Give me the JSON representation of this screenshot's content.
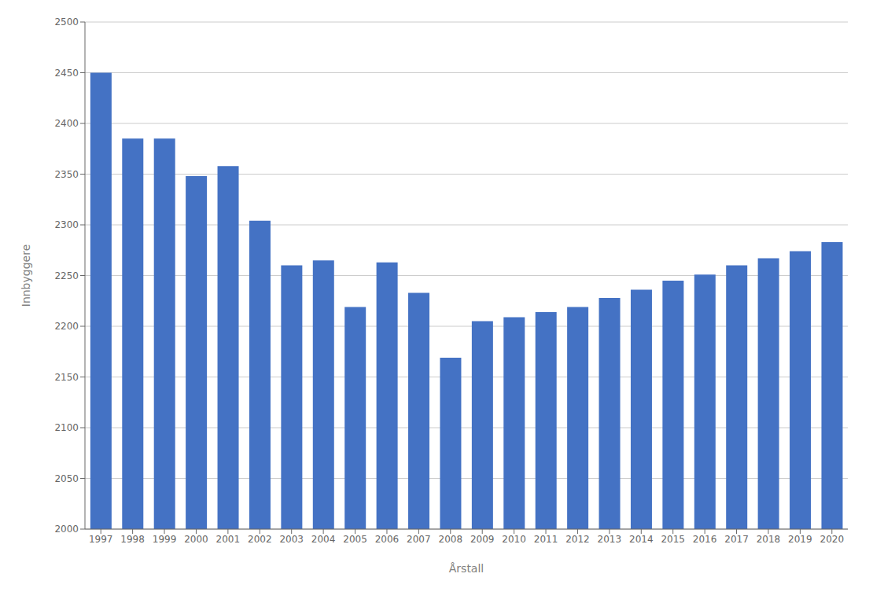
{
  "chart_data": {
    "type": "bar",
    "xlabel": "Årstall",
    "ylabel": "Innbyggere",
    "categories": [
      "1997",
      "1998",
      "1999",
      "2000",
      "2001",
      "2002",
      "2003",
      "2004",
      "2005",
      "2006",
      "2007",
      "2008",
      "2009",
      "2010",
      "2011",
      "2012",
      "2013",
      "2014",
      "2015",
      "2016",
      "2017",
      "2018",
      "2019",
      "2020"
    ],
    "values": [
      2450,
      2385,
      2385,
      2348,
      2358,
      2304,
      2260,
      2265,
      2219,
      2263,
      2233,
      2169,
      2205,
      2209,
      2214,
      2219,
      2228,
      2236,
      2245,
      2251,
      2260,
      2267,
      2274,
      2283
    ],
    "color": "#4472C4",
    "ylim": [
      2000,
      2500
    ],
    "yticks": [
      2000,
      2050,
      2100,
      2150,
      2200,
      2250,
      2300,
      2350,
      2400,
      2450,
      2500
    ],
    "grid": true
  }
}
